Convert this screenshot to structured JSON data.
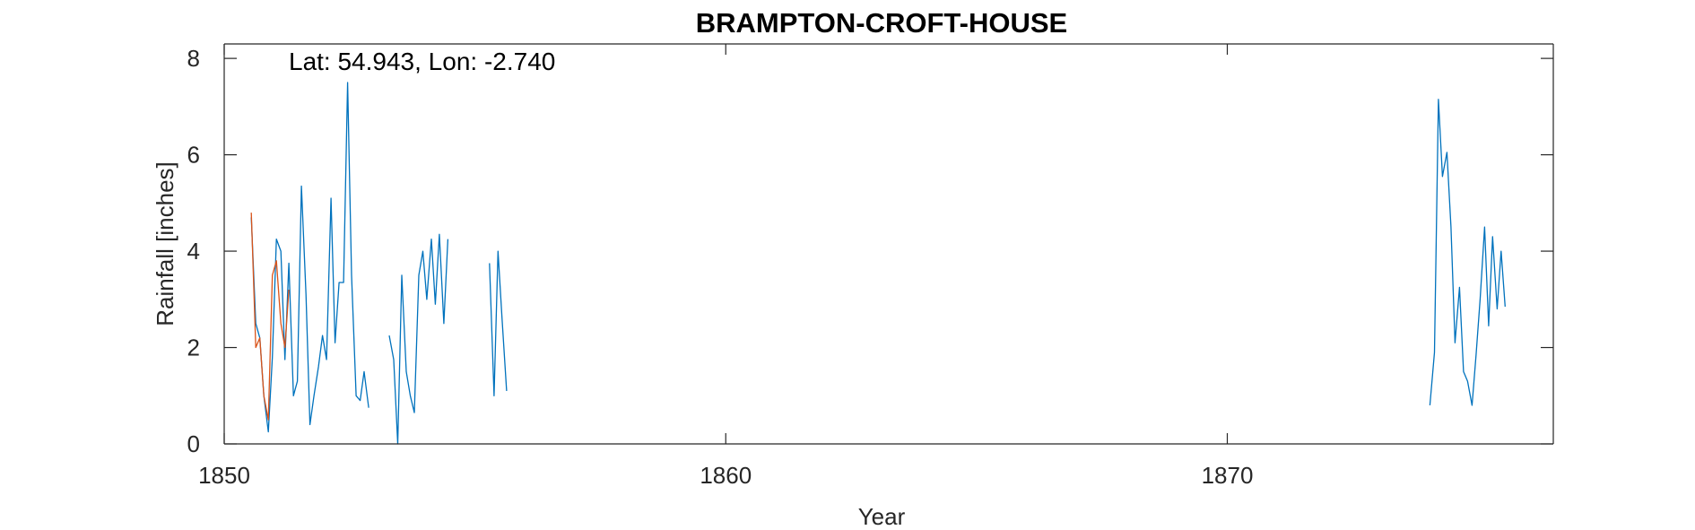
{
  "chart_data": {
    "type": "line",
    "title": "BRAMPTON-CROFT-HOUSE",
    "xlabel": "Year",
    "ylabel": "Rainfall [inches]",
    "annotation": "Lat: 54.943, Lon: -2.740",
    "xlim": [
      1850,
      1876.5
    ],
    "ylim": [
      0,
      8.3
    ],
    "xticks": [
      1850,
      1860,
      1870
    ],
    "yticks": [
      0,
      2,
      4,
      6,
      8
    ],
    "grid": false,
    "colors": {
      "primary": "#0072BD",
      "secondary": "#D95319"
    },
    "series": [
      {
        "color": "#0072BD",
        "segments": [
          [
            [
              1850.54,
              4.7
            ],
            [
              1850.63,
              2.5
            ],
            [
              1850.71,
              2.2
            ],
            [
              1850.79,
              1.0
            ],
            [
              1850.88,
              0.25
            ],
            [
              1850.96,
              1.8
            ],
            [
              1851.04,
              4.25
            ],
            [
              1851.13,
              4.0
            ],
            [
              1851.21,
              1.75
            ],
            [
              1851.29,
              3.75
            ],
            [
              1851.38,
              1.0
            ],
            [
              1851.46,
              1.3
            ],
            [
              1851.54,
              5.35
            ],
            [
              1851.63,
              3.1
            ],
            [
              1851.71,
              0.4
            ],
            [
              1851.79,
              1.0
            ],
            [
              1851.88,
              1.6
            ],
            [
              1851.96,
              2.25
            ],
            [
              1852.04,
              1.75
            ],
            [
              1852.13,
              5.1
            ],
            [
              1852.21,
              2.1
            ],
            [
              1852.29,
              3.35
            ],
            [
              1852.38,
              3.35
            ],
            [
              1852.46,
              7.5
            ],
            [
              1852.54,
              3.5
            ],
            [
              1852.63,
              1.0
            ],
            [
              1852.71,
              0.9
            ],
            [
              1852.79,
              1.5
            ],
            [
              1852.88,
              0.75
            ]
          ],
          [
            [
              1853.29,
              2.25
            ],
            [
              1853.38,
              1.75
            ],
            [
              1853.46,
              0.0
            ],
            [
              1853.54,
              3.5
            ],
            [
              1853.63,
              1.5
            ],
            [
              1853.71,
              1.0
            ],
            [
              1853.79,
              0.65
            ],
            [
              1853.88,
              3.5
            ],
            [
              1853.96,
              4.0
            ],
            [
              1854.04,
              3.0
            ],
            [
              1854.13,
              4.25
            ],
            [
              1854.21,
              2.9
            ],
            [
              1854.29,
              4.35
            ],
            [
              1854.38,
              2.5
            ],
            [
              1854.46,
              4.25
            ]
          ],
          [
            [
              1855.29,
              3.75
            ],
            [
              1855.38,
              1.0
            ],
            [
              1855.46,
              4.0
            ],
            [
              1855.54,
              2.6
            ],
            [
              1855.63,
              1.1
            ]
          ],
          [
            [
              1874.04,
              0.8
            ],
            [
              1874.13,
              1.9
            ],
            [
              1874.21,
              7.15
            ],
            [
              1874.29,
              5.55
            ],
            [
              1874.38,
              6.05
            ],
            [
              1874.46,
              4.5
            ],
            [
              1874.54,
              2.1
            ],
            [
              1874.63,
              3.25
            ],
            [
              1874.71,
              1.5
            ],
            [
              1874.79,
              1.3
            ],
            [
              1874.88,
              0.8
            ],
            [
              1874.96,
              1.85
            ],
            [
              1875.04,
              3.0
            ],
            [
              1875.13,
              4.5
            ],
            [
              1875.21,
              2.45
            ],
            [
              1875.29,
              4.3
            ],
            [
              1875.38,
              2.8
            ],
            [
              1875.46,
              4.0
            ],
            [
              1875.54,
              2.85
            ]
          ]
        ]
      },
      {
        "color": "#D95319",
        "segments": [
          [
            [
              1850.54,
              4.8
            ],
            [
              1850.63,
              2.0
            ],
            [
              1850.71,
              2.2
            ],
            [
              1850.79,
              1.0
            ],
            [
              1850.88,
              0.5
            ],
            [
              1850.96,
              3.5
            ],
            [
              1851.04,
              3.8
            ],
            [
              1851.13,
              2.5
            ],
            [
              1851.21,
              2.0
            ],
            [
              1851.29,
              3.2
            ]
          ]
        ]
      }
    ]
  }
}
